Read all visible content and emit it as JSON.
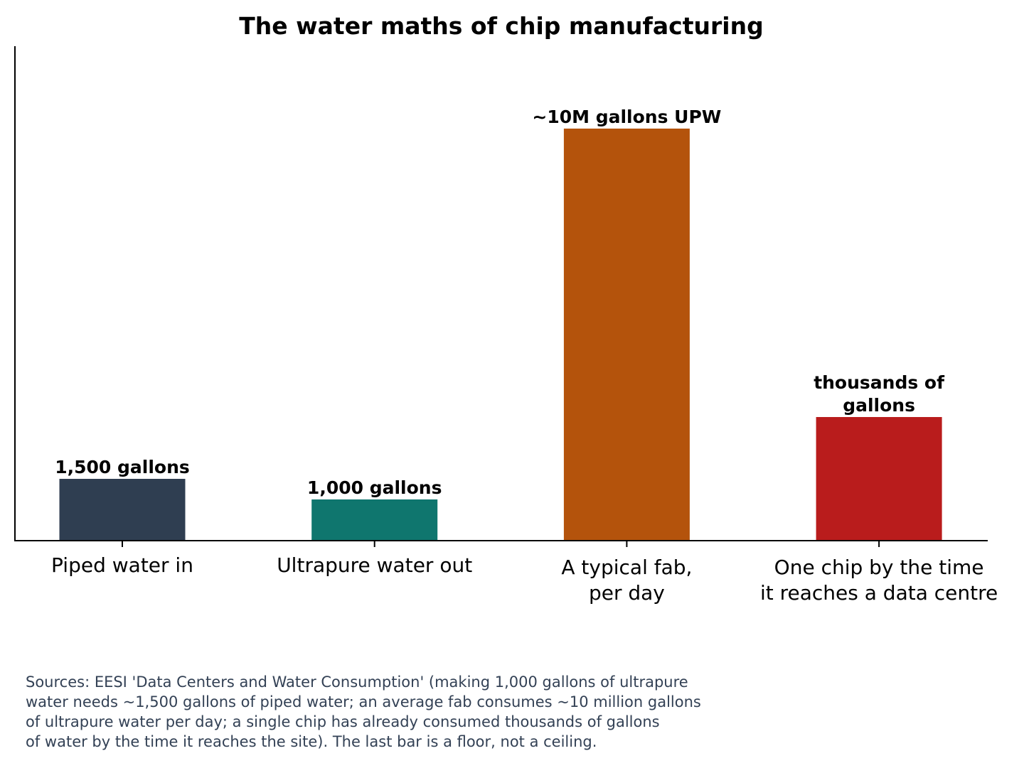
{
  "chart_data": {
    "type": "bar",
    "title": "The water maths of chip manufacturing",
    "xlabel": "",
    "ylabel": "",
    "categories": [
      "Piped water in",
      "Ultrapure water out",
      "A typical fab,\nper day",
      "One chip by the time\nit reaches a data centre"
    ],
    "bars": [
      {
        "category": "Piped water in",
        "value": 1.5,
        "label": "1,500 gallons",
        "color": "#2f3e51"
      },
      {
        "category": "Ultrapure water out",
        "value": 1.0,
        "label": "1,000 gallons",
        "color": "#0f766e"
      },
      {
        "category": "A typical fab,\nper day",
        "value": 10.0,
        "label": "~10M gallons UPW",
        "color": "#b4530c"
      },
      {
        "category": "One chip by the time\nit reaches a data centre",
        "value": 3.0,
        "label": "thousands of\ngallons",
        "color": "#b91c1c"
      }
    ],
    "ylim": [
      0,
      12
    ],
    "y_ticks_shown": false,
    "grid": false
  },
  "source_note": "Sources: EESI 'Data Centers and Water Consumption' (making 1,000 gallons of ultrapure\nwater needs ~1,500 gallons of piped water; an average fab consumes ~10 million gallons\nof ultrapure water per day; a single chip has already consumed thousands of gallons\nof water by the time it reaches the site). The last bar is a floor, not a ceiling.",
  "colors": {
    "text": "#000000",
    "axis": "#000000",
    "note": "#334155"
  }
}
